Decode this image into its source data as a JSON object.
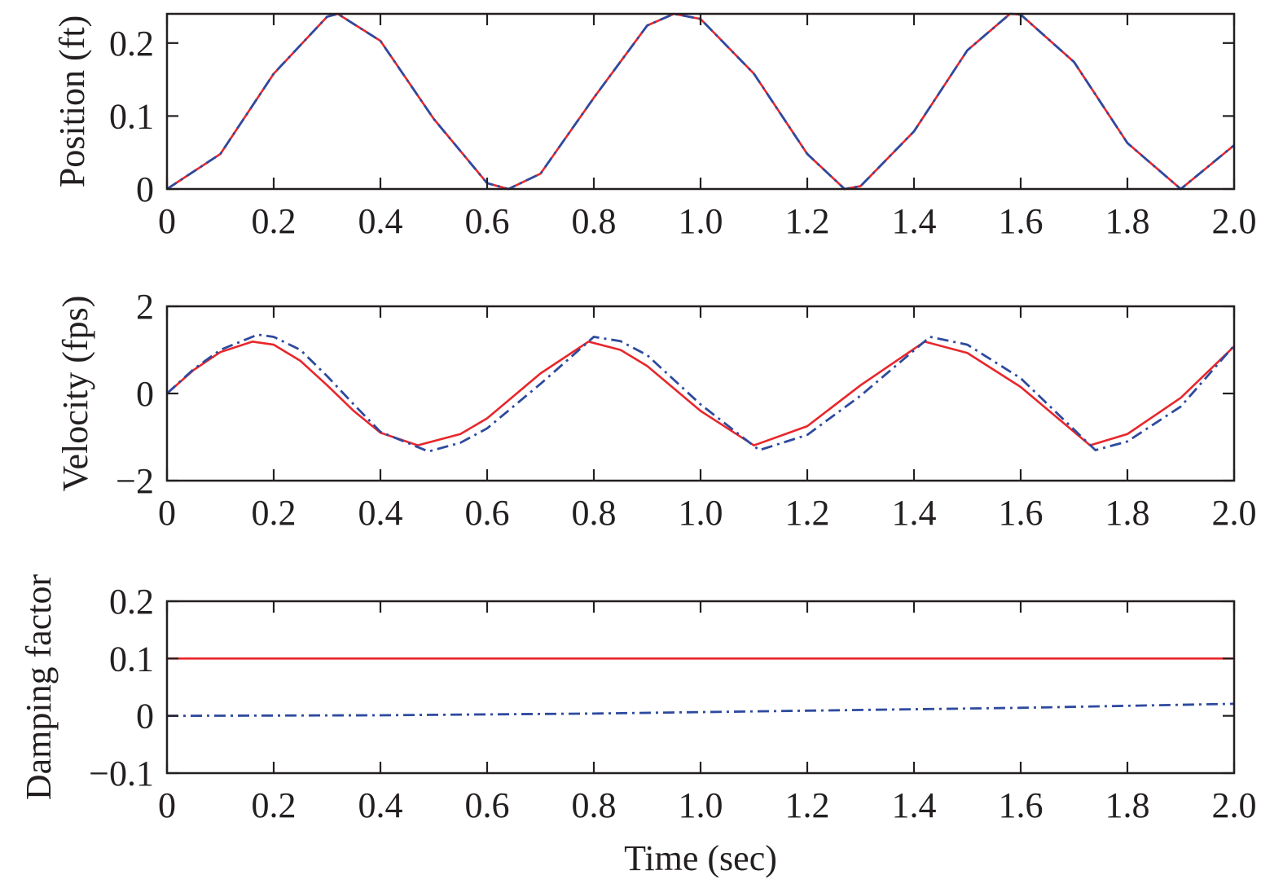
{
  "chart_data": [
    {
      "type": "line",
      "ylabel": "Position (ft)",
      "xlabel": "",
      "xlim": [
        0,
        2.0
      ],
      "ylim": [
        0,
        0.24
      ],
      "xticks": [
        "0",
        "0.2",
        "0.4",
        "0.6",
        "0.8",
        "1.0",
        "1.2",
        "1.4",
        "1.6",
        "1.8",
        "2.0"
      ],
      "yticks": [
        {
          "value": 0,
          "label": "0"
        },
        {
          "value": 0.1,
          "label": "0.1"
        },
        {
          "value": 0.2,
          "label": "0.2"
        }
      ],
      "grid": false,
      "series": [
        {
          "style": "solid",
          "color": "#e8262b",
          "x": [
            0,
            0.1,
            0.2,
            0.3,
            0.32,
            0.4,
            0.5,
            0.6,
            0.64,
            0.7,
            0.8,
            0.9,
            0.95,
            1.0,
            1.1,
            1.2,
            1.27,
            1.3,
            1.4,
            1.5,
            1.58,
            1.6,
            1.7,
            1.8,
            1.9,
            2.0
          ],
          "values": [
            0,
            0.048,
            0.158,
            0.236,
            0.24,
            0.203,
            0.096,
            0.008,
            0,
            0.021,
            0.125,
            0.224,
            0.24,
            0.233,
            0.158,
            0.048,
            0,
            0.004,
            0.079,
            0.19,
            0.24,
            0.239,
            0.174,
            0.063,
            0,
            0.06
          ]
        },
        {
          "style": "dash-dot",
          "color": "#2e4a9e",
          "x": [
            0,
            0.1,
            0.2,
            0.3,
            0.32,
            0.4,
            0.5,
            0.6,
            0.64,
            0.7,
            0.8,
            0.9,
            0.95,
            1.0,
            1.1,
            1.2,
            1.27,
            1.3,
            1.4,
            1.5,
            1.58,
            1.6,
            1.7,
            1.8,
            1.9,
            2.0
          ],
          "values": [
            0,
            0.048,
            0.158,
            0.236,
            0.24,
            0.203,
            0.096,
            0.008,
            0,
            0.021,
            0.125,
            0.224,
            0.24,
            0.233,
            0.158,
            0.048,
            0,
            0.004,
            0.079,
            0.19,
            0.24,
            0.239,
            0.174,
            0.063,
            0,
            0.06
          ]
        }
      ]
    },
    {
      "type": "line",
      "ylabel": "Velocity (fps)",
      "xlabel": "",
      "xlim": [
        0,
        2.0
      ],
      "ylim": [
        -2,
        2
      ],
      "xticks": [
        "0",
        "0.2",
        "0.4",
        "0.6",
        "0.8",
        "1.0",
        "1.2",
        "1.4",
        "1.6",
        "1.8",
        "2.0"
      ],
      "yticks": [
        {
          "value": -2,
          "label": "−2"
        },
        {
          "value": 0,
          "label": "0"
        },
        {
          "value": 2,
          "label": "2"
        }
      ],
      "grid": false,
      "series": [
        {
          "style": "solid",
          "color": "#e8262b",
          "x": [
            0,
            0.05,
            0.1,
            0.16,
            0.2,
            0.25,
            0.3,
            0.35,
            0.4,
            0.47,
            0.55,
            0.6,
            0.7,
            0.79,
            0.85,
            0.9,
            1.0,
            1.1,
            1.2,
            1.3,
            1.42,
            1.5,
            1.6,
            1.73,
            1.8,
            1.9,
            2.0
          ],
          "values": [
            0,
            0.54,
            0.95,
            1.19,
            1.12,
            0.75,
            0.19,
            -0.4,
            -0.9,
            -1.19,
            -0.93,
            -0.57,
            0.46,
            1.19,
            1.0,
            0.63,
            -0.4,
            -1.19,
            -0.75,
            0.19,
            1.19,
            0.93,
            0.15,
            -1.19,
            -0.93,
            -0.1,
            1.08
          ]
        },
        {
          "style": "dash-dot",
          "color": "#2e4a9e",
          "x": [
            0,
            0.05,
            0.1,
            0.17,
            0.2,
            0.25,
            0.3,
            0.35,
            0.4,
            0.49,
            0.55,
            0.6,
            0.7,
            0.8,
            0.85,
            0.9,
            1.0,
            1.11,
            1.2,
            1.3,
            1.43,
            1.5,
            1.6,
            1.74,
            1.8,
            1.9,
            2.0
          ],
          "values": [
            0,
            0.56,
            1.0,
            1.35,
            1.3,
            1.0,
            0.4,
            -0.25,
            -0.88,
            -1.33,
            -1.13,
            -0.8,
            0.22,
            1.3,
            1.2,
            0.88,
            -0.25,
            -1.3,
            -0.95,
            -0.05,
            1.3,
            1.12,
            0.35,
            -1.3,
            -1.1,
            -0.3,
            1.1
          ]
        }
      ]
    },
    {
      "type": "line",
      "ylabel": "Damping factor",
      "xlabel": "Time (sec)",
      "xlim": [
        0,
        2.0
      ],
      "ylim": [
        -0.1,
        0.2
      ],
      "xticks": [
        "0",
        "0.2",
        "0.4",
        "0.6",
        "0.8",
        "1.0",
        "1.2",
        "1.4",
        "1.6",
        "1.8",
        "2.0"
      ],
      "yticks": [
        {
          "value": -0.1,
          "label": "−0.1"
        },
        {
          "value": 0,
          "label": "0"
        },
        {
          "value": 0.1,
          "label": "0.1"
        },
        {
          "value": 0.2,
          "label": "0.2"
        }
      ],
      "grid": false,
      "series": [
        {
          "style": "solid",
          "color": "#e8262b",
          "x": [
            0,
            2.0
          ],
          "values": [
            0.1,
            0.1
          ]
        },
        {
          "style": "dash-dot",
          "color": "#2e4a9e",
          "x": [
            0,
            0.4,
            0.8,
            1.2,
            1.6,
            2.0
          ],
          "values": [
            0,
            0.001,
            0.004,
            0.009,
            0.014,
            0.021
          ]
        }
      ]
    }
  ]
}
